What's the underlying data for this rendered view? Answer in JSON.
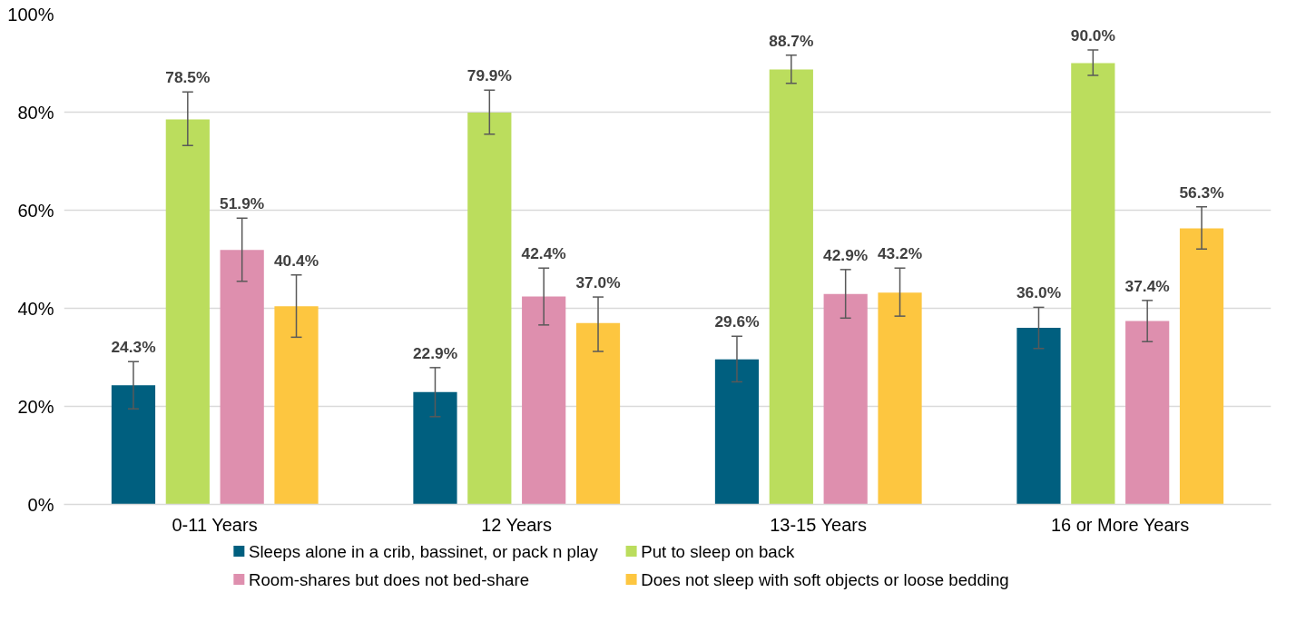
{
  "chart_data": {
    "type": "bar",
    "categories": [
      "0-11 Years",
      "12 Years",
      "13-15 Years",
      "16 or More Years"
    ],
    "series": [
      {
        "name": "Sleeps alone in a crib, bassinet, or pack n play",
        "color": "#005f7f",
        "values": [
          24.3,
          22.9,
          29.6,
          36.0
        ],
        "value_labels": [
          "24.3%",
          "22.9%",
          "29.6%",
          "36.0%"
        ],
        "errors": [
          [
            19.5,
            29.1
          ],
          [
            17.9,
            27.9
          ],
          [
            25.0,
            34.3
          ],
          [
            31.8,
            40.2
          ]
        ]
      },
      {
        "name": "Put to sleep on back",
        "color": "#bbdd5d",
        "values": [
          78.5,
          79.9,
          88.7,
          90.0
        ],
        "value_labels": [
          "78.5%",
          "79.9%",
          "88.7%",
          "90.0%"
        ],
        "errors": [
          [
            73.2,
            84.1
          ],
          [
            75.5,
            84.5
          ],
          [
            85.9,
            91.6
          ],
          [
            87.5,
            92.7
          ]
        ]
      },
      {
        "name": "Room-shares but does not bed-share",
        "color": "#de8fae",
        "values": [
          51.9,
          42.4,
          42.9,
          37.4
        ],
        "value_labels": [
          "51.9%",
          "42.4%",
          "42.9%",
          "37.4%"
        ],
        "errors": [
          [
            45.5,
            58.4
          ],
          [
            36.6,
            48.2
          ],
          [
            38.0,
            47.9
          ],
          [
            33.2,
            41.6
          ]
        ]
      },
      {
        "name": "Does not sleep with soft objects or loose bedding",
        "color": "#fdc640",
        "values": [
          40.4,
          37.0,
          43.2,
          56.3
        ],
        "value_labels": [
          "40.4%",
          "37.0%",
          "43.2%",
          "56.3%"
        ],
        "errors": [
          [
            34.1,
            46.8
          ],
          [
            31.2,
            42.3
          ],
          [
            38.4,
            48.2
          ],
          [
            52.1,
            60.7
          ]
        ]
      }
    ],
    "ylim": [
      0,
      100
    ],
    "yticks": [
      {
        "value": 0,
        "label": "0%"
      },
      {
        "value": 20,
        "label": "20%"
      },
      {
        "value": 40,
        "label": "40%"
      },
      {
        "value": 60,
        "label": "60%"
      },
      {
        "value": 80,
        "label": "80%"
      },
      {
        "value": 100,
        "label": "100%"
      }
    ],
    "grid": "y",
    "legend": "bottom"
  }
}
